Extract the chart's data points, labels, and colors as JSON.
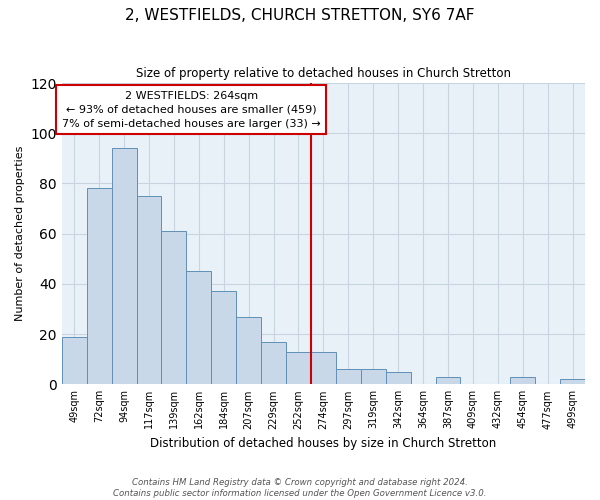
{
  "title": "2, WESTFIELDS, CHURCH STRETTON, SY6 7AF",
  "subtitle": "Size of property relative to detached houses in Church Stretton",
  "xlabel": "Distribution of detached houses by size in Church Stretton",
  "ylabel": "Number of detached properties",
  "bar_labels": [
    "49sqm",
    "72sqm",
    "94sqm",
    "117sqm",
    "139sqm",
    "162sqm",
    "184sqm",
    "207sqm",
    "229sqm",
    "252sqm",
    "274sqm",
    "297sqm",
    "319sqm",
    "342sqm",
    "364sqm",
    "387sqm",
    "409sqm",
    "432sqm",
    "454sqm",
    "477sqm",
    "499sqm"
  ],
  "bar_values": [
    19,
    78,
    94,
    75,
    61,
    45,
    37,
    27,
    17,
    13,
    13,
    6,
    6,
    5,
    0,
    3,
    0,
    0,
    3,
    0,
    2
  ],
  "bar_color": "#c8d8e8",
  "bar_edge_color": "#6090b8",
  "vline_color": "#cc0000",
  "annotation_line1": "2 WESTFIELDS: 264sqm",
  "annotation_line2": "← 93% of detached houses are smaller (459)",
  "annotation_line3": "7% of semi-detached houses are larger (33) →",
  "annotation_box_edge": "#cc0000",
  "ylim": [
    0,
    120
  ],
  "yticks": [
    0,
    20,
    40,
    60,
    80,
    100,
    120
  ],
  "footer1": "Contains HM Land Registry data © Crown copyright and database right 2024.",
  "footer2": "Contains public sector information licensed under the Open Government Licence v3.0.",
  "bg_color": "#ffffff",
  "plot_bg_color": "#e8f0f8",
  "grid_color": "#c8d4e0"
}
